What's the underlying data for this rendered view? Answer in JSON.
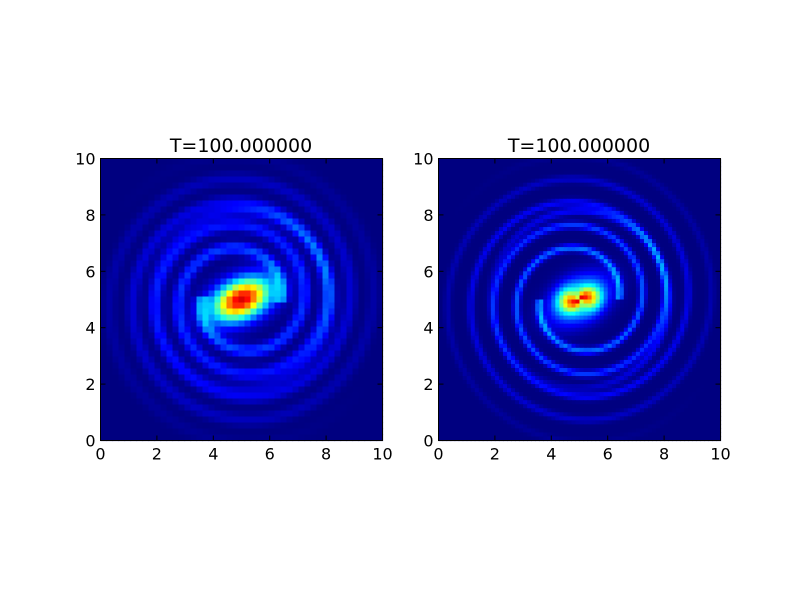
{
  "colormap": "jet",
  "colors": {
    "background": "#00007f",
    "frame": "#000000",
    "figure_background": "#ffffff"
  },
  "chart_data": [
    {
      "type": "heatmap",
      "title": "T=100.000000",
      "xlabel": "",
      "ylabel": "",
      "xlim": [
        0,
        10
      ],
      "ylim": [
        0,
        10
      ],
      "xticks": [
        "0",
        "2",
        "4",
        "6",
        "8",
        "10"
      ],
      "yticks": [
        "0",
        "2",
        "4",
        "6",
        "8",
        "10"
      ],
      "grid": false,
      "resolution": "coarse",
      "field": {
        "description_kind": "spiral vortex",
        "core_center": [
          5.0,
          5.0
        ],
        "core_peak": 1.0,
        "core_orientation": "tilted ellipse, ~25 degrees",
        "spiral_arms": 2,
        "outer_radius": 3.2
      }
    },
    {
      "type": "heatmap",
      "title": "T=100.000000",
      "xlabel": "",
      "ylabel": "",
      "xlim": [
        0,
        10
      ],
      "ylim": [
        0,
        10
      ],
      "xticks": [
        "0",
        "2",
        "4",
        "6",
        "8",
        "10"
      ],
      "yticks": [
        "0",
        "2",
        "4",
        "6",
        "8",
        "10"
      ],
      "grid": false,
      "resolution": "fine",
      "field": {
        "description_kind": "spiral vortex",
        "core_center": [
          5.0,
          5.0
        ],
        "core_peak": 1.0,
        "core_orientation": "tilted ellipse, ~30 degrees",
        "spiral_arms": 2,
        "outer_radius": 3.2
      }
    }
  ]
}
